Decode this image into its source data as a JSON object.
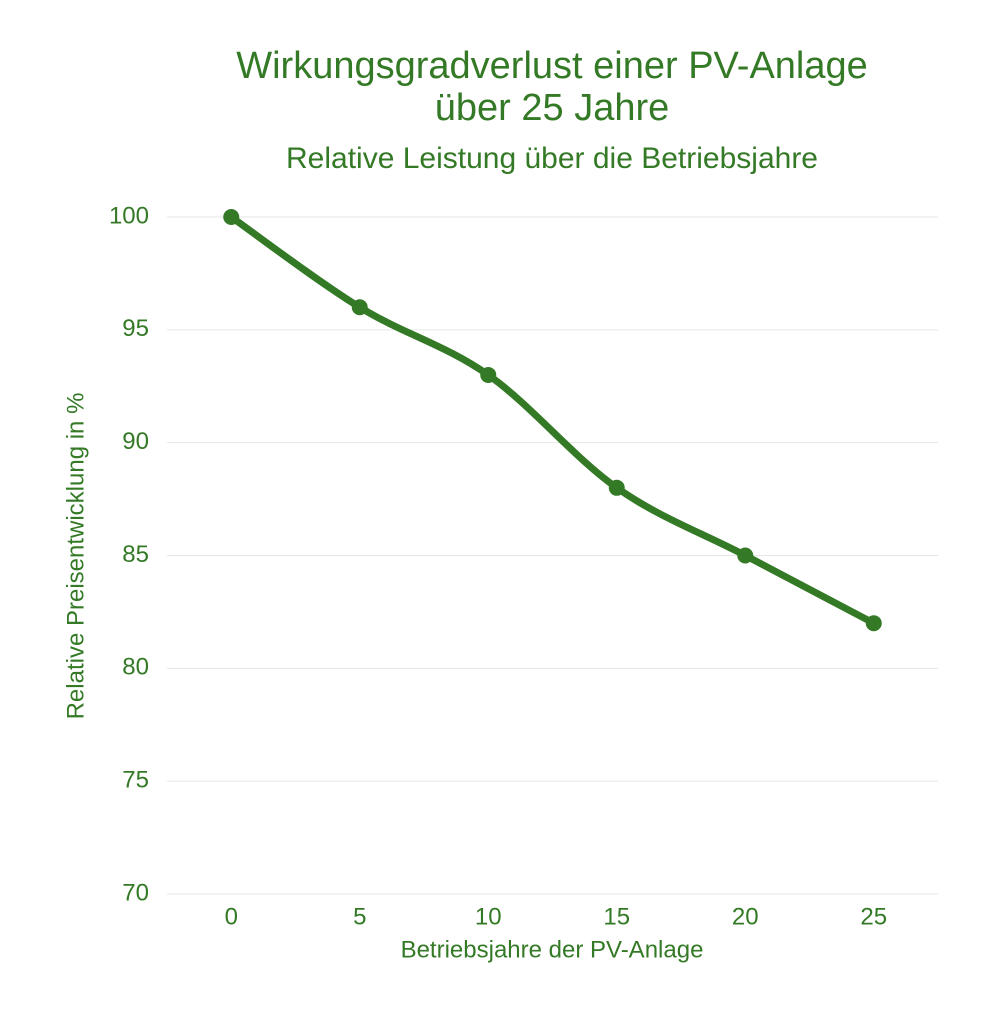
{
  "chart_data": {
    "type": "line",
    "title": [
      "Wirkungsgradverlust einer PV-Anlage",
      "über 25 Jahre"
    ],
    "subtitle": "Relative Leistung über die Betriebsjahre",
    "x_label": "Betriebsjahre der PV-Anlage",
    "y_label": "Relative Preisentwicklung in %",
    "x": [
      0,
      5,
      10,
      15,
      20,
      25
    ],
    "series": [
      {
        "name": "Relative Leistung",
        "color": "#347a26",
        "values": [
          100,
          96,
          93,
          88,
          85,
          82
        ]
      }
    ],
    "xlim": [
      -2.5,
      27.5
    ],
    "xticks": [
      0,
      5,
      10,
      15,
      20,
      25
    ],
    "ylim": [
      70,
      100
    ],
    "yticks": [
      70,
      75,
      80,
      85,
      90,
      95,
      100
    ],
    "grid": true,
    "smooth": true
  }
}
